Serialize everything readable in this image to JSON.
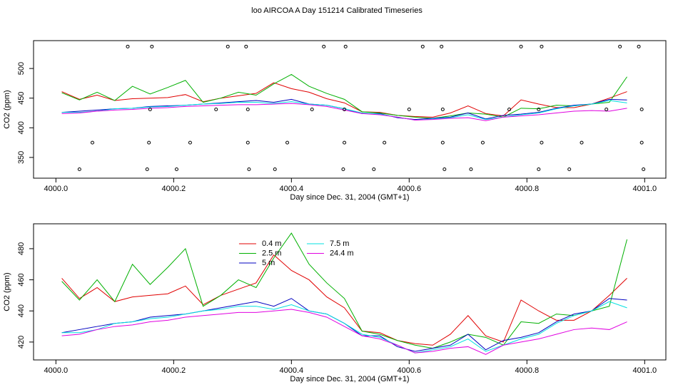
{
  "chart_data": [
    {
      "type": "line",
      "title": "loo AIRCOA A  Day 151214  Calibrated Timeseries",
      "xlabel": "Day since Dec. 31, 2004 (GMT+1)",
      "ylabel": "CO2 (ppm)",
      "xlim": [
        3999.962,
        4001.036
      ],
      "ylim": [
        315,
        547
      ],
      "xticks": [
        {
          "value": 4000,
          "label": "4000.0"
        },
        {
          "value": 4000.2,
          "label": "4000.2"
        },
        {
          "value": 4000.4,
          "label": "4000.4"
        },
        {
          "value": 4000.6,
          "label": "4000.6"
        },
        {
          "value": 4000.8,
          "label": "4000.8"
        },
        {
          "value": 4001,
          "label": "4001.0"
        }
      ],
      "yticks": [
        350,
        400,
        450,
        500
      ],
      "x": [
        4000.01,
        4000.04,
        4000.07,
        4000.1,
        4000.13,
        4000.16,
        4000.19,
        4000.22,
        4000.25,
        4000.28,
        4000.31,
        4000.34,
        4000.37,
        4000.4,
        4000.43,
        4000.46,
        4000.49,
        4000.52,
        4000.55,
        4000.58,
        4000.61,
        4000.64,
        4000.67,
        4000.7,
        4000.73,
        4000.76,
        4000.79,
        4000.82,
        4000.85,
        4000.88,
        4000.91,
        4000.94,
        4000.97
      ],
      "series": [
        {
          "color": "#e00000",
          "values": [
            461,
            448,
            455,
            446,
            449,
            450,
            451,
            456,
            444,
            450,
            454,
            458,
            476,
            466,
            460,
            449,
            442,
            427,
            426,
            421,
            419,
            418,
            425,
            437,
            424,
            420,
            447,
            440,
            434,
            434,
            440,
            450,
            461
          ]
        },
        {
          "color": "#00b000",
          "values": [
            459,
            447,
            460,
            446,
            470,
            457,
            468,
            480,
            443,
            450,
            460,
            455,
            474,
            490,
            470,
            458,
            448,
            427,
            425,
            421,
            418,
            416,
            420,
            425,
            423,
            418,
            433,
            432,
            438,
            437,
            440,
            443,
            486
          ]
        },
        {
          "color": "#0000c0",
          "values": [
            426,
            428,
            430,
            432,
            433,
            436,
            437,
            438,
            440,
            442,
            444,
            446,
            443,
            448,
            440,
            438,
            432,
            424,
            424,
            417,
            414,
            416,
            418,
            425,
            415,
            421,
            423,
            426,
            433,
            438,
            440,
            448,
            447
          ]
        },
        {
          "color": "#00e0e0",
          "values": [
            426,
            426,
            428,
            432,
            433,
            435,
            436,
            438,
            440,
            441,
            443,
            443,
            441,
            444,
            440,
            438,
            432,
            425,
            423,
            418,
            413,
            415,
            417,
            422,
            414,
            418,
            422,
            425,
            432,
            437,
            440,
            446,
            442
          ]
        },
        {
          "color": "#e000e0",
          "values": [
            424,
            425,
            428,
            430,
            431,
            433,
            434,
            436,
            437,
            438,
            439,
            439,
            440,
            441,
            439,
            436,
            430,
            424,
            422,
            418,
            413,
            414,
            416,
            417,
            412,
            418,
            420,
            422,
            425,
            428,
            429,
            428,
            433
          ]
        }
      ],
      "points": {
        "color": "#000000",
        "x": [
          4000.122,
          4000.163,
          4000.292,
          4000.323,
          4000.455,
          4000.492,
          4000.623,
          4000.655,
          4000.79,
          4000.825,
          4000.958,
          4000.99,
          4000.16,
          4000.272,
          4000.326,
          4000.435,
          4000.49,
          4000.6,
          4000.657,
          4000.77,
          4000.82,
          4000.935,
          4000.995,
          4000.062,
          4000.158,
          4000.228,
          4000.326,
          4000.393,
          4000.49,
          4000.558,
          4000.657,
          4000.725,
          4000.825,
          4000.893,
          4000.995,
          4000.04,
          4000.155,
          4000.205,
          4000.328,
          4000.372,
          4000.488,
          4000.54,
          4000.66,
          4000.705,
          4000.82,
          4000.872,
          4000.998
        ],
        "y": [
          537,
          537,
          537,
          537,
          537,
          537,
          537,
          537,
          537,
          537,
          537,
          537,
          431,
          431,
          431,
          431,
          431,
          431,
          431,
          431,
          431,
          431,
          431,
          375,
          375,
          375,
          375,
          375,
          375,
          375,
          375,
          375,
          375,
          375,
          375,
          330,
          330,
          330,
          330,
          330,
          330,
          330,
          330,
          330,
          330,
          330,
          330
        ]
      }
    },
    {
      "type": "line",
      "xlabel": "Day since Dec. 31, 2004 (GMT+1)",
      "ylabel": "CO2 (ppm)",
      "xlim": [
        3999.962,
        4001.036
      ],
      "ylim": [
        408.5,
        496
      ],
      "xticks": [
        {
          "value": 4000,
          "label": "4000.0"
        },
        {
          "value": 4000.2,
          "label": "4000.2"
        },
        {
          "value": 4000.4,
          "label": "4000.4"
        },
        {
          "value": 4000.6,
          "label": "4000.6"
        },
        {
          "value": 4000.8,
          "label": "4000.8"
        },
        {
          "value": 4001,
          "label": "4001.0"
        }
      ],
      "yticks": [
        420,
        440,
        460,
        480
      ],
      "legend": "top-center",
      "x": [
        4000.01,
        4000.04,
        4000.07,
        4000.1,
        4000.13,
        4000.16,
        4000.19,
        4000.22,
        4000.25,
        4000.28,
        4000.31,
        4000.34,
        4000.37,
        4000.4,
        4000.43,
        4000.46,
        4000.49,
        4000.52,
        4000.55,
        4000.58,
        4000.61,
        4000.64,
        4000.67,
        4000.7,
        4000.73,
        4000.76,
        4000.79,
        4000.82,
        4000.85,
        4000.88,
        4000.91,
        4000.94,
        4000.97
      ],
      "series": [
        {
          "name": "0.4 m",
          "color": "#e00000",
          "values": [
            461,
            448,
            455,
            446,
            449,
            450,
            451,
            456,
            444,
            450,
            454,
            458,
            476,
            466,
            460,
            449,
            442,
            427,
            426,
            421,
            419,
            418,
            425,
            437,
            424,
            420,
            447,
            440,
            434,
            434,
            440,
            450,
            461
          ]
        },
        {
          "name": "2.5 m",
          "color": "#00b000",
          "values": [
            459,
            447,
            460,
            446,
            470,
            457,
            468,
            480,
            443,
            450,
            460,
            455,
            474,
            490,
            470,
            458,
            448,
            427,
            425,
            421,
            418,
            416,
            420,
            425,
            423,
            418,
            433,
            432,
            438,
            437,
            440,
            443,
            486
          ]
        },
        {
          "name": "5 m",
          "color": "#0000c0",
          "values": [
            426,
            428,
            430,
            432,
            433,
            436,
            437,
            438,
            440,
            442,
            444,
            446,
            443,
            448,
            440,
            438,
            432,
            424,
            424,
            417,
            414,
            416,
            418,
            425,
            415,
            421,
            423,
            426,
            433,
            438,
            440,
            448,
            447
          ]
        },
        {
          "name": "7.5 m",
          "color": "#00e0e0",
          "values": [
            426,
            426,
            428,
            432,
            433,
            435,
            436,
            438,
            440,
            441,
            443,
            443,
            441,
            444,
            440,
            438,
            432,
            425,
            423,
            418,
            413,
            415,
            417,
            422,
            414,
            418,
            422,
            425,
            432,
            437,
            440,
            446,
            442
          ]
        },
        {
          "name": "24.4 m",
          "color": "#e000e0",
          "values": [
            424,
            425,
            428,
            430,
            431,
            433,
            434,
            436,
            437,
            438,
            439,
            439,
            440,
            441,
            439,
            436,
            430,
            424,
            422,
            418,
            413,
            414,
            416,
            417,
            412,
            418,
            420,
            422,
            425,
            428,
            429,
            428,
            433
          ]
        }
      ]
    }
  ]
}
